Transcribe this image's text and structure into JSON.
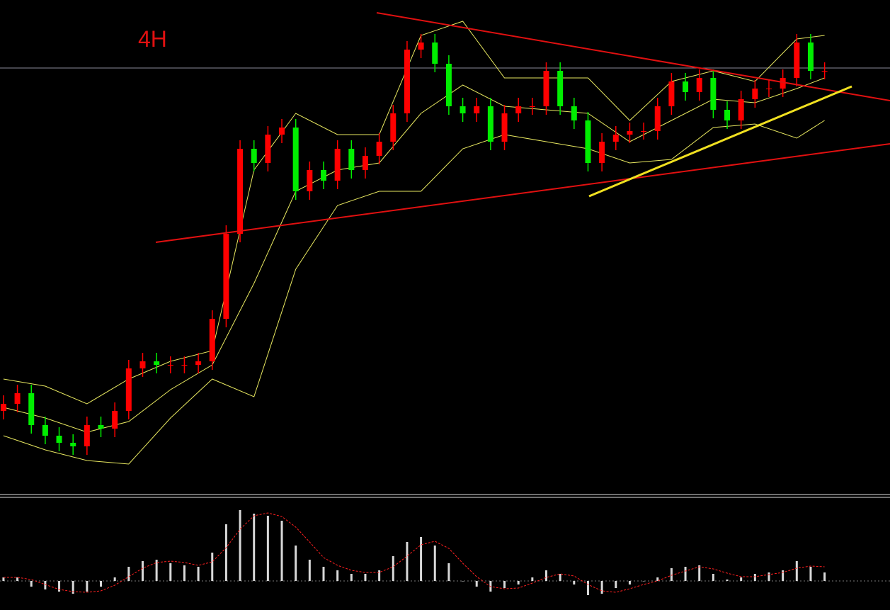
{
  "chart_data": [
    {
      "type": "candlestick",
      "title": "4H",
      "x": [
        0,
        1,
        2,
        3,
        4,
        5,
        6,
        7,
        8,
        9,
        10,
        11,
        12,
        13,
        14,
        15,
        16,
        17,
        18,
        19,
        20,
        21,
        22,
        23,
        24,
        25,
        26,
        27,
        28,
        29,
        30,
        31,
        32,
        33,
        34,
        35,
        36,
        37,
        38,
        39,
        40,
        41,
        42,
        43,
        44,
        45,
        46,
        47,
        48,
        49,
        50,
        51,
        52,
        53,
        54,
        55,
        56,
        57,
        58,
        59
      ],
      "open": [
        120,
        130,
        145,
        100,
        85,
        75,
        70,
        100,
        95,
        120,
        180,
        190,
        185,
        185,
        185,
        190,
        250,
        370,
        490,
        470,
        510,
        520,
        430,
        460,
        445,
        490,
        460,
        480,
        500,
        540,
        630,
        640,
        610,
        550,
        540,
        550,
        500,
        540,
        550,
        550,
        600,
        550,
        530,
        470,
        500,
        510,
        515,
        515,
        550,
        585,
        570,
        590,
        545,
        530,
        560,
        575,
        575,
        590,
        640,
        600
      ],
      "high": [
        142,
        157,
        157,
        112,
        97,
        87,
        112,
        112,
        132,
        192,
        202,
        202,
        197,
        197,
        202,
        262,
        382,
        502,
        502,
        522,
        532,
        532,
        472,
        472,
        502,
        502,
        492,
        512,
        552,
        642,
        652,
        652,
        622,
        562,
        562,
        562,
        552,
        562,
        562,
        612,
        612,
        562,
        542,
        512,
        522,
        527,
        527,
        562,
        597,
        597,
        602,
        602,
        557,
        572,
        587,
        587,
        602,
        652,
        652,
        612
      ],
      "low": [
        108,
        118,
        88,
        73,
        63,
        58,
        58,
        83,
        83,
        108,
        168,
        173,
        173,
        173,
        173,
        178,
        238,
        358,
        458,
        458,
        498,
        418,
        418,
        433,
        433,
        448,
        448,
        468,
        488,
        528,
        618,
        598,
        538,
        528,
        528,
        488,
        488,
        528,
        538,
        538,
        538,
        518,
        458,
        458,
        488,
        498,
        503,
        503,
        538,
        558,
        558,
        533,
        518,
        518,
        548,
        563,
        563,
        578,
        588,
        588
      ],
      "close": [
        130,
        145,
        100,
        85,
        75,
        70,
        100,
        95,
        120,
        180,
        190,
        185,
        185,
        185,
        190,
        250,
        370,
        490,
        470,
        510,
        520,
        430,
        460,
        445,
        490,
        460,
        480,
        500,
        540,
        630,
        640,
        610,
        550,
        540,
        550,
        500,
        540,
        550,
        550,
        600,
        550,
        530,
        470,
        500,
        510,
        515,
        515,
        550,
        585,
        570,
        590,
        545,
        530,
        560,
        575,
        575,
        590,
        640,
        600,
        600
      ],
      "up_color": "#ff0000",
      "down_color": "#00ee00",
      "xlim": [
        -0.25,
        63.7
      ],
      "ylim": [
        0,
        700
      ],
      "bands": {
        "color": "#e8e860",
        "x": [
          0,
          3,
          6,
          9,
          12,
          15,
          18,
          21,
          24,
          27,
          30,
          33,
          36,
          39,
          42,
          45,
          48,
          51,
          54,
          57,
          59
        ],
        "upper": [
          165,
          155,
          130,
          165,
          190,
          205,
          460,
          540,
          510,
          510,
          650,
          670,
          590,
          590,
          590,
          530,
          585,
          600,
          585,
          645,
          650
        ],
        "middle": [
          125,
          110,
          90,
          105,
          150,
          185,
          300,
          430,
          460,
          470,
          540,
          580,
          550,
          545,
          540,
          500,
          530,
          560,
          555,
          575,
          590
        ],
        "lower": [
          85,
          65,
          50,
          45,
          110,
          165,
          140,
          320,
          410,
          430,
          430,
          490,
          510,
          500,
          490,
          470,
          475,
          520,
          525,
          505,
          530
        ]
      }
    },
    {
      "type": "macd",
      "x": [
        0,
        1,
        2,
        3,
        4,
        5,
        6,
        7,
        8,
        9,
        10,
        11,
        12,
        13,
        14,
        15,
        16,
        17,
        18,
        19,
        20,
        21,
        22,
        23,
        24,
        25,
        26,
        27,
        28,
        29,
        30,
        31,
        32,
        33,
        34,
        35,
        36,
        37,
        38,
        39,
        40,
        41,
        42,
        43,
        44,
        45,
        46,
        47,
        48,
        49,
        50,
        51,
        52,
        53,
        54,
        55,
        56,
        57,
        58,
        59
      ],
      "histogram": [
        5,
        5,
        -8,
        -12,
        -15,
        -18,
        -15,
        -8,
        5,
        20,
        28,
        30,
        25,
        22,
        20,
        40,
        80,
        100,
        95,
        92,
        85,
        50,
        30,
        20,
        15,
        10,
        10,
        15,
        35,
        55,
        62,
        50,
        25,
        0,
        -8,
        -15,
        -10,
        -5,
        5,
        15,
        10,
        -5,
        -20,
        -18,
        -10,
        -5,
        0,
        5,
        18,
        20,
        22,
        10,
        2,
        5,
        10,
        12,
        15,
        28,
        20,
        12
      ],
      "signal": [
        5,
        5,
        2,
        -5,
        -12,
        -15,
        -16,
        -14,
        -6,
        6,
        18,
        26,
        28,
        26,
        22,
        27,
        47,
        73,
        92,
        96,
        91,
        76,
        55,
        33,
        22,
        15,
        12,
        12,
        20,
        35,
        51,
        56,
        46,
        25,
        6,
        -8,
        -11,
        -10,
        -3,
        5,
        10,
        7,
        -5,
        -14,
        -16,
        -11,
        -5,
        0,
        8,
        14,
        20,
        17,
        11,
        6,
        6,
        9,
        12,
        18,
        21,
        20
      ],
      "histogram_color": "#d8d8d8",
      "signal_color": "#ff2020",
      "xlim": [
        -0.25,
        63.7
      ],
      "ylim": [
        -30,
        110
      ]
    }
  ]
}
